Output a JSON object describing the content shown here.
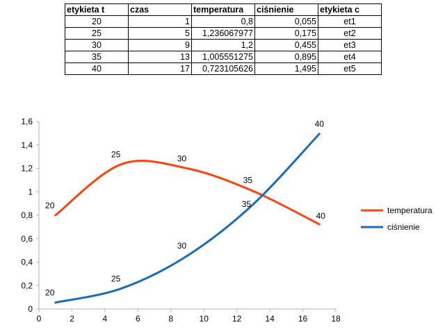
{
  "table": {
    "headers": [
      "etykieta t",
      "czas",
      "temperatura",
      "ciśnienie",
      "etykieta c"
    ],
    "rows": [
      [
        "20",
        "1",
        "0,8",
        "0,055",
        "et1"
      ],
      [
        "25",
        "5",
        "1,236067977",
        "0,175",
        "et2"
      ],
      [
        "30",
        "9",
        "1,2",
        "0,455",
        "et3"
      ],
      [
        "35",
        "13",
        "1,005551275",
        "0,895",
        "et4"
      ],
      [
        "40",
        "17",
        "0,723105626",
        "1,495",
        "et5"
      ]
    ]
  },
  "chart_data": {
    "type": "line",
    "x": [
      1,
      5,
      9,
      13,
      17
    ],
    "series": [
      {
        "name": "temperatura",
        "color": "#ff420e",
        "values": [
          0.8,
          1.236067977,
          1.2,
          1.005551275,
          0.723105626
        ],
        "point_labels": [
          "20",
          "25",
          "30",
          "35",
          "40"
        ]
      },
      {
        "name": "ciśnienie",
        "color": "#1c6bb8",
        "values": [
          0.055,
          0.175,
          0.455,
          0.895,
          1.495
        ],
        "point_labels": [
          "20",
          "25",
          "30",
          "35",
          "40"
        ]
      }
    ],
    "xlim": [
      0,
      18
    ],
    "ylim": [
      0,
      1.6
    ],
    "x_ticks": [
      "0",
      "2",
      "4",
      "6",
      "8",
      "10",
      "12",
      "14",
      "16",
      "18"
    ],
    "y_ticks": [
      "0",
      "0,2",
      "0,4",
      "0,6",
      "0,8",
      "1",
      "1,2",
      "1,4",
      "1,6"
    ],
    "smooth": true,
    "grid": false,
    "legend": "right"
  }
}
